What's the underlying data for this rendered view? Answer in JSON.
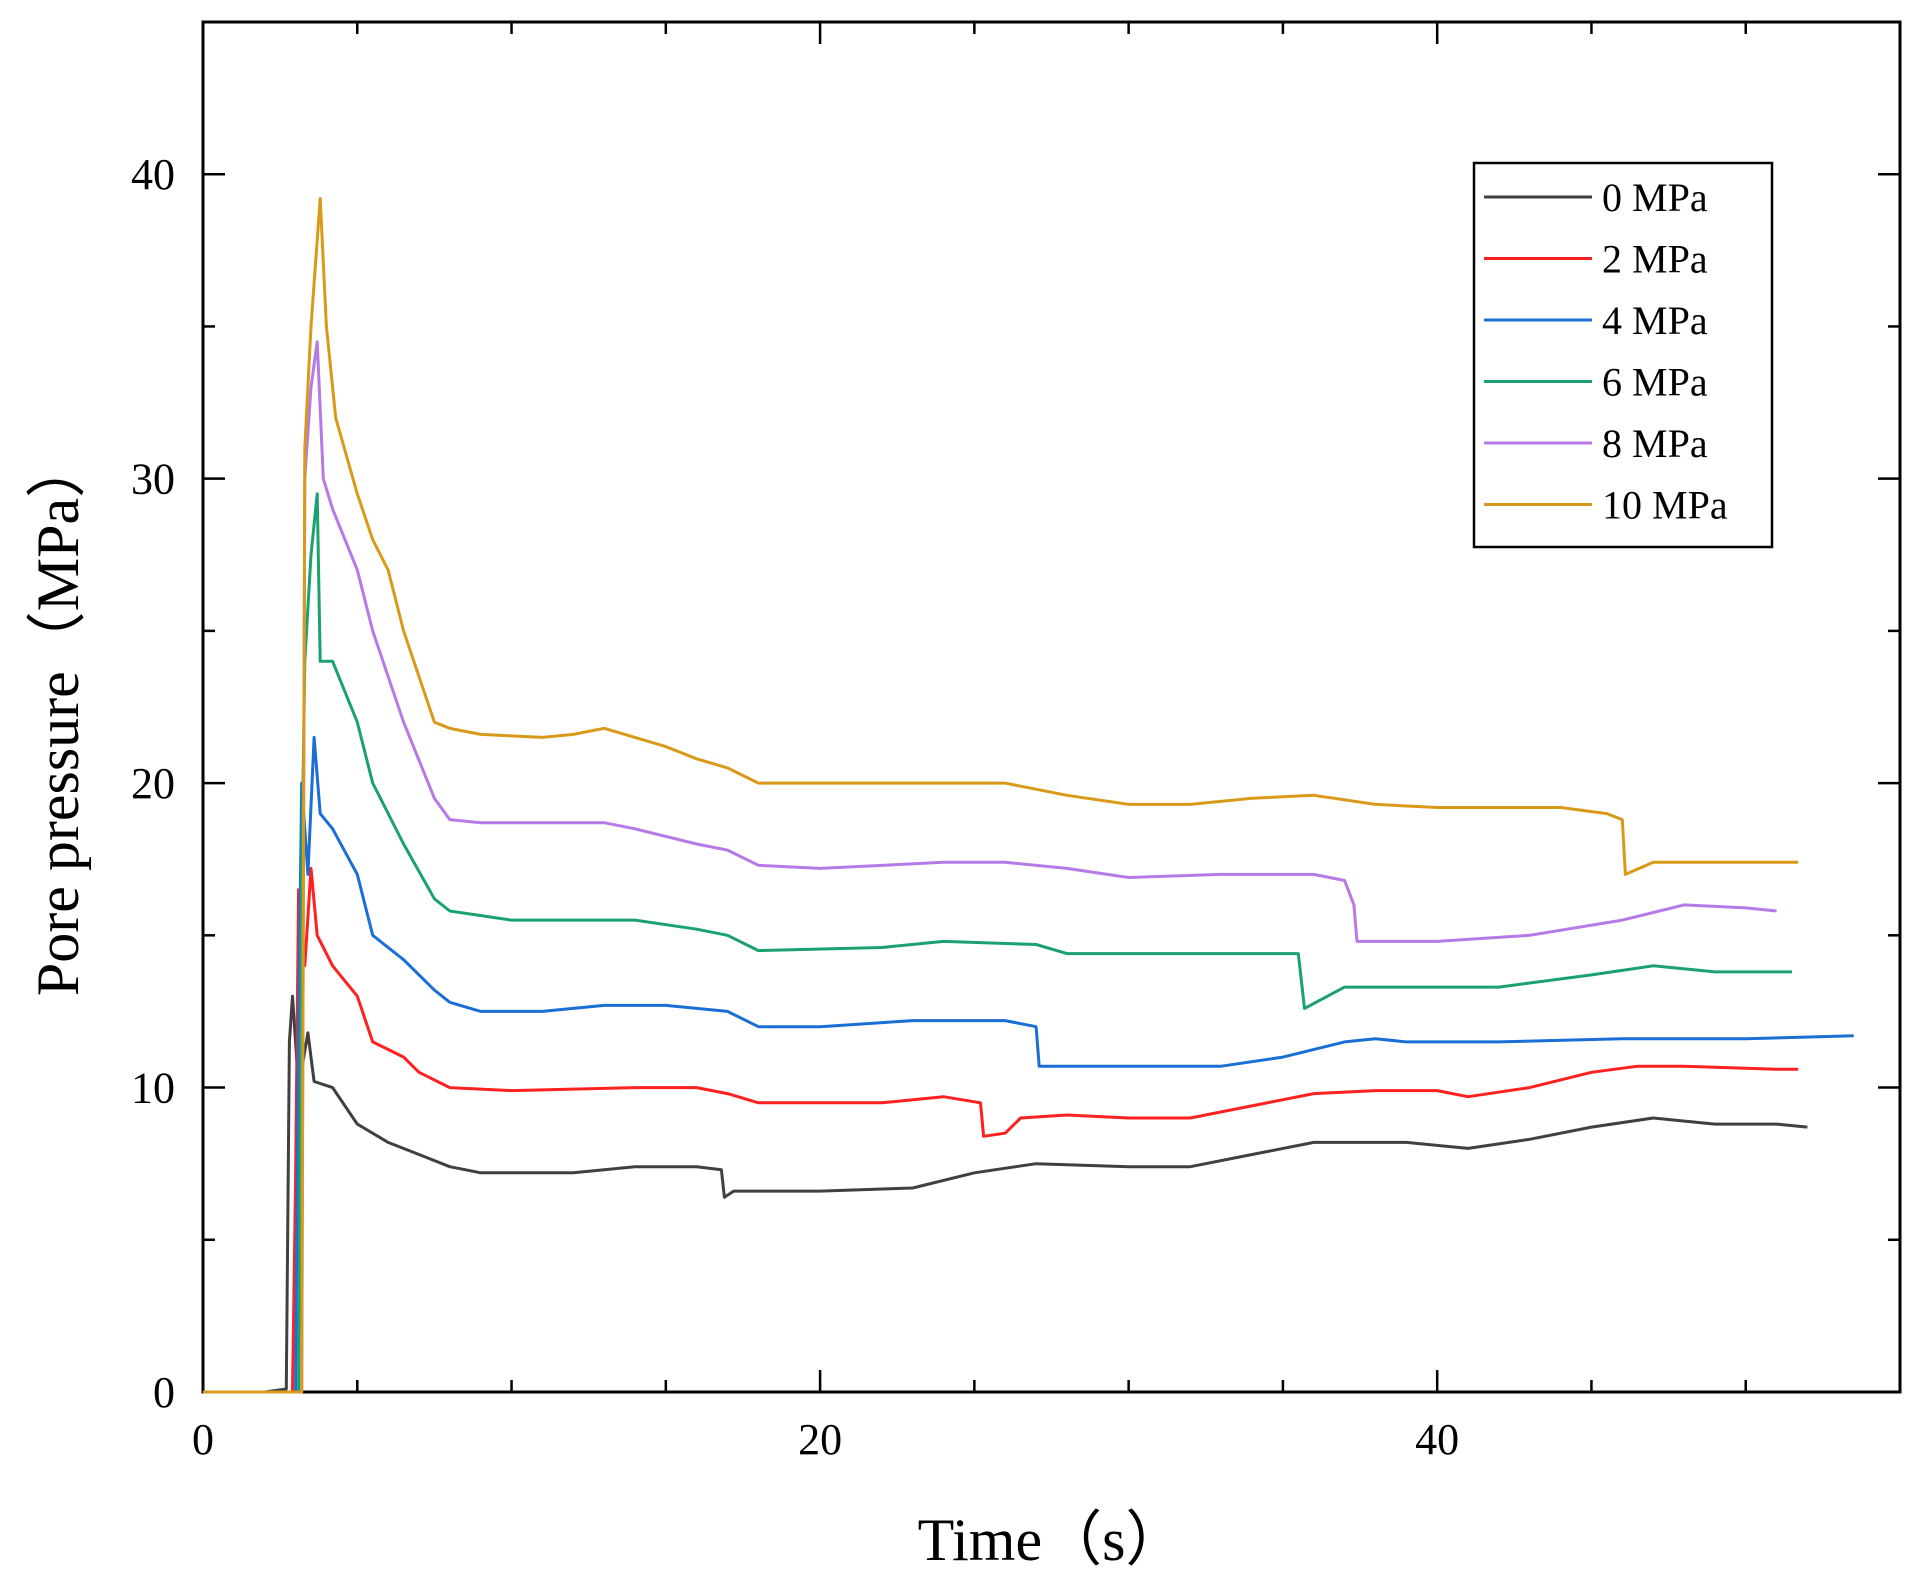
{
  "chart_data": {
    "type": "line",
    "title": "",
    "xlabel": "Time（s）",
    "ylabel": "Pore pressure（MPa）",
    "xlim": [
      0,
      55
    ],
    "ylim": [
      0,
      45
    ],
    "x_ticks": [
      0,
      20,
      40
    ],
    "y_ticks": [
      0,
      10,
      20,
      30,
      40
    ],
    "legend_position": "top-right",
    "series": [
      {
        "name": "0 MPa",
        "color": "#404040",
        "points": [
          [
            0,
            0
          ],
          [
            2,
            0
          ],
          [
            2.7,
            0.1
          ],
          [
            2.8,
            11.5
          ],
          [
            2.9,
            13
          ],
          [
            3.1,
            10
          ],
          [
            3.4,
            11.8
          ],
          [
            3.6,
            10.2
          ],
          [
            4.2,
            10
          ],
          [
            5,
            8.8
          ],
          [
            6,
            8.2
          ],
          [
            7,
            7.8
          ],
          [
            8,
            7.4
          ],
          [
            9,
            7.2
          ],
          [
            12,
            7.2
          ],
          [
            14,
            7.4
          ],
          [
            16,
            7.4
          ],
          [
            16.8,
            7.3
          ],
          [
            16.9,
            6.4
          ],
          [
            17.2,
            6.6
          ],
          [
            20,
            6.6
          ],
          [
            23,
            6.7
          ],
          [
            25,
            7.2
          ],
          [
            27,
            7.5
          ],
          [
            30,
            7.4
          ],
          [
            32,
            7.4
          ],
          [
            34,
            7.8
          ],
          [
            36,
            8.2
          ],
          [
            39,
            8.2
          ],
          [
            41,
            8.0
          ],
          [
            43,
            8.3
          ],
          [
            45,
            8.7
          ],
          [
            47,
            9.0
          ],
          [
            49,
            8.8
          ],
          [
            51,
            8.8
          ],
          [
            52,
            8.7
          ]
        ]
      },
      {
        "name": "2 MPa",
        "color": "#ff2020",
        "points": [
          [
            0,
            0
          ],
          [
            2.9,
            0
          ],
          [
            3.0,
            7
          ],
          [
            3.1,
            16.5
          ],
          [
            3.3,
            14
          ],
          [
            3.5,
            17.2
          ],
          [
            3.7,
            15
          ],
          [
            4.2,
            14
          ],
          [
            5,
            13
          ],
          [
            5.5,
            11.5
          ],
          [
            6.5,
            11
          ],
          [
            7,
            10.5
          ],
          [
            8,
            10
          ],
          [
            10,
            9.9
          ],
          [
            14,
            10
          ],
          [
            16,
            10
          ],
          [
            17,
            9.8
          ],
          [
            18,
            9.5
          ],
          [
            22,
            9.5
          ],
          [
            24,
            9.7
          ],
          [
            25.2,
            9.5
          ],
          [
            25.3,
            8.4
          ],
          [
            26,
            8.5
          ],
          [
            26.5,
            9
          ],
          [
            28,
            9.1
          ],
          [
            30,
            9
          ],
          [
            32,
            9
          ],
          [
            36,
            9.8
          ],
          [
            38,
            9.9
          ],
          [
            40,
            9.9
          ],
          [
            41,
            9.7
          ],
          [
            43,
            10
          ],
          [
            45,
            10.5
          ],
          [
            46.5,
            10.7
          ],
          [
            48,
            10.7
          ],
          [
            51,
            10.6
          ],
          [
            51.7,
            10.6
          ]
        ]
      },
      {
        "name": "4 MPa",
        "color": "#1a6fd6",
        "points": [
          [
            0,
            0
          ],
          [
            3.0,
            0
          ],
          [
            3.1,
            12
          ],
          [
            3.2,
            20
          ],
          [
            3.4,
            17
          ],
          [
            3.6,
            21.5
          ],
          [
            3.8,
            19
          ],
          [
            4.2,
            18.5
          ],
          [
            5,
            17
          ],
          [
            5.5,
            15
          ],
          [
            6.5,
            14.2
          ],
          [
            7.5,
            13.2
          ],
          [
            8,
            12.8
          ],
          [
            9,
            12.5
          ],
          [
            11,
            12.5
          ],
          [
            13,
            12.7
          ],
          [
            15,
            12.7
          ],
          [
            17,
            12.5
          ],
          [
            18,
            12
          ],
          [
            20,
            12
          ],
          [
            23,
            12.2
          ],
          [
            26,
            12.2
          ],
          [
            27.0,
            12
          ],
          [
            27.1,
            10.7
          ],
          [
            29,
            10.7
          ],
          [
            33,
            10.7
          ],
          [
            35,
            11
          ],
          [
            37,
            11.5
          ],
          [
            38,
            11.6
          ],
          [
            39,
            11.5
          ],
          [
            42,
            11.5
          ],
          [
            46,
            11.6
          ],
          [
            50,
            11.6
          ],
          [
            53.5,
            11.7
          ]
        ]
      },
      {
        "name": "6 MPa",
        "color": "#1aa170",
        "points": [
          [
            0,
            0
          ],
          [
            3.1,
            0
          ],
          [
            3.2,
            17
          ],
          [
            3.3,
            24
          ],
          [
            3.5,
            27.5
          ],
          [
            3.7,
            29.5
          ],
          [
            3.8,
            24
          ],
          [
            4.2,
            24
          ],
          [
            5,
            22
          ],
          [
            5.5,
            20
          ],
          [
            6.5,
            18
          ],
          [
            7.5,
            16.2
          ],
          [
            8,
            15.8
          ],
          [
            10,
            15.5
          ],
          [
            12,
            15.5
          ],
          [
            14,
            15.5
          ],
          [
            16,
            15.2
          ],
          [
            17,
            15
          ],
          [
            18,
            14.5
          ],
          [
            22,
            14.6
          ],
          [
            24,
            14.8
          ],
          [
            27,
            14.7
          ],
          [
            28,
            14.4
          ],
          [
            32,
            14.4
          ],
          [
            35.5,
            14.4
          ],
          [
            35.7,
            12.6
          ],
          [
            37,
            13.3
          ],
          [
            40,
            13.3
          ],
          [
            42,
            13.3
          ],
          [
            45,
            13.7
          ],
          [
            47,
            14
          ],
          [
            49,
            13.8
          ],
          [
            51.5,
            13.8
          ]
        ]
      },
      {
        "name": "8 MPa",
        "color": "#b67ae6",
        "points": [
          [
            0,
            0
          ],
          [
            3.2,
            0
          ],
          [
            3.3,
            30
          ],
          [
            3.5,
            33
          ],
          [
            3.7,
            34.5
          ],
          [
            3.9,
            30
          ],
          [
            4.2,
            29
          ],
          [
            5,
            27
          ],
          [
            5.5,
            25
          ],
          [
            6.5,
            22
          ],
          [
            7.5,
            19.5
          ],
          [
            8,
            18.8
          ],
          [
            9,
            18.7
          ],
          [
            13,
            18.7
          ],
          [
            14,
            18.5
          ],
          [
            16,
            18
          ],
          [
            17,
            17.8
          ],
          [
            18,
            17.3
          ],
          [
            20,
            17.2
          ],
          [
            24,
            17.4
          ],
          [
            26,
            17.4
          ],
          [
            28,
            17.2
          ],
          [
            30,
            16.9
          ],
          [
            33,
            17
          ],
          [
            36,
            17
          ],
          [
            37,
            16.8
          ],
          [
            37.3,
            16
          ],
          [
            37.4,
            14.8
          ],
          [
            40,
            14.8
          ],
          [
            43,
            15
          ],
          [
            46,
            15.5
          ],
          [
            48,
            16
          ],
          [
            50,
            15.9
          ],
          [
            51,
            15.8
          ]
        ]
      },
      {
        "name": "10 MPa",
        "color": "#d99a1a",
        "points": [
          [
            0,
            0
          ],
          [
            3.2,
            0
          ],
          [
            3.3,
            31
          ],
          [
            3.5,
            35
          ],
          [
            3.8,
            39.2
          ],
          [
            4.0,
            35
          ],
          [
            4.3,
            32
          ],
          [
            5,
            29.5
          ],
          [
            5.5,
            28
          ],
          [
            6,
            27
          ],
          [
            6.5,
            25
          ],
          [
            7,
            23.5
          ],
          [
            7.5,
            22
          ],
          [
            8,
            21.8
          ],
          [
            9,
            21.6
          ],
          [
            11,
            21.5
          ],
          [
            12,
            21.6
          ],
          [
            13,
            21.8
          ],
          [
            14,
            21.5
          ],
          [
            15,
            21.2
          ],
          [
            16,
            20.8
          ],
          [
            17,
            20.5
          ],
          [
            18,
            20
          ],
          [
            22,
            20
          ],
          [
            24,
            20
          ],
          [
            26,
            20
          ],
          [
            28,
            19.6
          ],
          [
            30,
            19.3
          ],
          [
            32,
            19.3
          ],
          [
            34,
            19.5
          ],
          [
            36,
            19.6
          ],
          [
            38,
            19.3
          ],
          [
            40,
            19.2
          ],
          [
            44,
            19.2
          ],
          [
            45.5,
            19.0
          ],
          [
            46.0,
            18.8
          ],
          [
            46.1,
            17
          ],
          [
            47,
            17.4
          ],
          [
            48,
            17.4
          ],
          [
            51,
            17.4
          ],
          [
            51.7,
            17.4
          ]
        ]
      }
    ]
  }
}
